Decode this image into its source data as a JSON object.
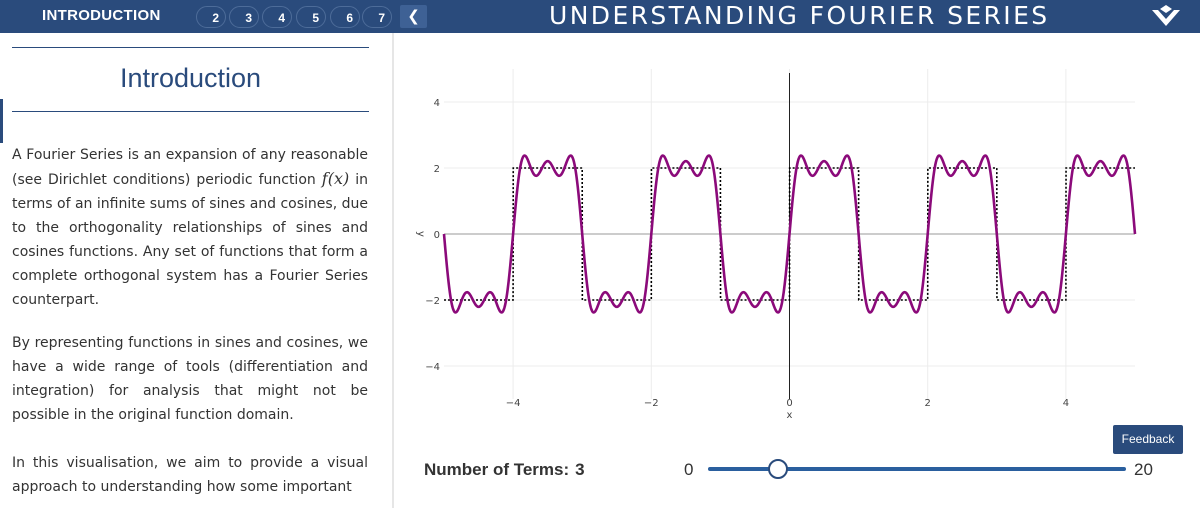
{
  "nav": {
    "title": "INTRODUCTION",
    "pages": [
      "2",
      "3",
      "4",
      "5",
      "6",
      "7"
    ],
    "back_icon": "chevron-left-icon",
    "app_title": "UNDERSTANDING FOURIER SERIES",
    "logo_icon": "university-logo-icon"
  },
  "intro": {
    "heading": "Introduction",
    "para1_a": "A Fourier Series is an expansion of any reasonable (see Dirichlet conditions) periodic function",
    "para1_fx": "f(x)",
    "para1_b": "in terms of an infinite sums of sines and cosines, due to the orthogonality relationships of sines and cosines functions. Any set of functions that form a complete orthogonal system has a Fourier Series counterpart.",
    "para2": "By representing functions in sines and cosines, we have a wide range of tools (differentiation and integration) for analysis that might not be possible in the original function domain.",
    "para3": "In this visualisation, we aim to provide a visual approach to understanding how some important"
  },
  "controls": {
    "terms_label": "Number of Terms:",
    "terms_value": "3",
    "slider_min": "0",
    "slider_max": "20",
    "feedback_label": "Feedback"
  },
  "colors": {
    "header": "#2a4b7c",
    "series": "#8b0a7a",
    "square": "#000000"
  },
  "chart_data": {
    "type": "line",
    "xlabel": "x",
    "ylabel": "y",
    "xlim": [
      -5,
      5
    ],
    "ylim": [
      -5,
      5
    ],
    "x_ticks": [
      -4,
      -2,
      0,
      2,
      4
    ],
    "y_ticks": [
      -4,
      -2,
      0,
      2,
      4
    ],
    "grid": true,
    "series": [
      {
        "style": "solid",
        "formula": "(8/pi) * sum_{k=0..2} sin((2k+1)*pi*x)/(2k+1)",
        "terms": 3,
        "color": "#8b0a7a"
      },
      {
        "style": "dotted",
        "formula": "2*sign(sin(pi*x))",
        "amplitude": 2,
        "period": 2,
        "color": "#000000"
      }
    ]
  }
}
